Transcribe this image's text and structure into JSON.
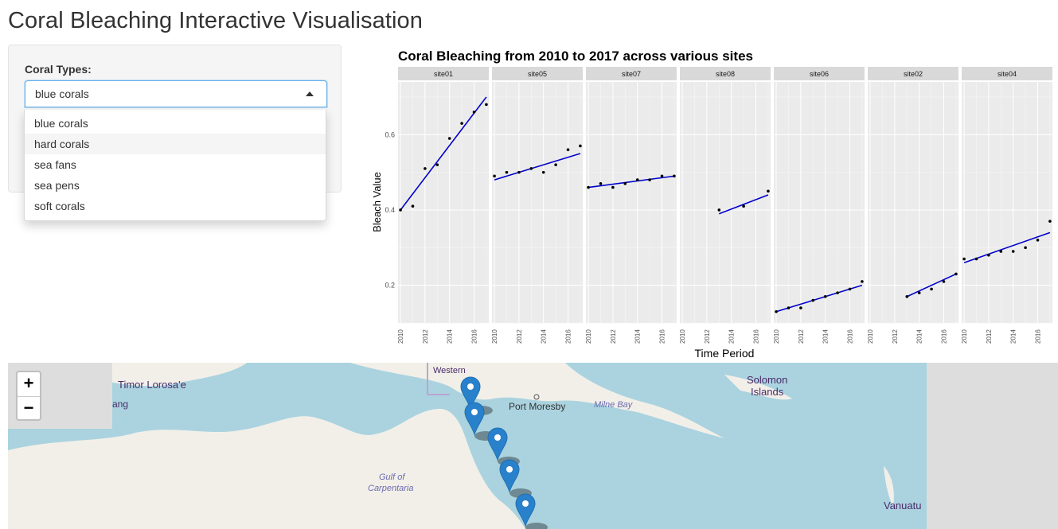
{
  "page": {
    "title": "Coral Bleaching Interactive Visualisation"
  },
  "sidebar": {
    "label": "Coral Types:",
    "selected": "blue corals",
    "options": [
      "blue corals",
      "hard corals",
      "sea fans",
      "sea pens",
      "soft corals"
    ],
    "highlighted_index": 1
  },
  "chart_data": {
    "type": "scatter",
    "title": "Coral Bleaching from 2010 to 2017 across various sites",
    "xlabel": "Time Period",
    "ylabel": "Bleach Value",
    "x_ticks": [
      "2010",
      "2012",
      "2014",
      "2016"
    ],
    "y_ticks": [
      "0.2",
      "0.4",
      "0.6"
    ],
    "xlim": [
      2009.8,
      2017.2
    ],
    "ylim": [
      0.1,
      0.74
    ],
    "grid": true,
    "trend_line": "linear",
    "panels": [
      {
        "site": "site01",
        "points": [
          [
            2010,
            0.4
          ],
          [
            2011,
            0.41
          ],
          [
            2012,
            0.51
          ],
          [
            2013,
            0.52
          ],
          [
            2014,
            0.59
          ],
          [
            2015,
            0.63
          ],
          [
            2016,
            0.66
          ],
          [
            2017,
            0.68
          ]
        ],
        "fit": [
          [
            2010,
            0.4
          ],
          [
            2017,
            0.7
          ]
        ]
      },
      {
        "site": "site05",
        "points": [
          [
            2010,
            0.49
          ],
          [
            2011,
            0.5
          ],
          [
            2012,
            0.5
          ],
          [
            2013,
            0.51
          ],
          [
            2014,
            0.5
          ],
          [
            2015,
            0.52
          ],
          [
            2016,
            0.56
          ],
          [
            2017,
            0.57
          ]
        ],
        "fit": [
          [
            2010,
            0.48
          ],
          [
            2017,
            0.55
          ]
        ]
      },
      {
        "site": "site07",
        "points": [
          [
            2010,
            0.46
          ],
          [
            2011,
            0.47
          ],
          [
            2012,
            0.46
          ],
          [
            2013,
            0.47
          ],
          [
            2014,
            0.48
          ],
          [
            2015,
            0.48
          ],
          [
            2016,
            0.49
          ],
          [
            2017,
            0.49
          ]
        ],
        "fit": [
          [
            2010,
            0.46
          ],
          [
            2017,
            0.49
          ]
        ]
      },
      {
        "site": "site08",
        "points": [
          [
            2013,
            0.4
          ],
          [
            2015,
            0.41
          ],
          [
            2017,
            0.45
          ]
        ],
        "fit": [
          [
            2013,
            0.39
          ],
          [
            2017,
            0.44
          ]
        ]
      },
      {
        "site": "site06",
        "points": [
          [
            2010,
            0.13
          ],
          [
            2011,
            0.14
          ],
          [
            2012,
            0.14
          ],
          [
            2013,
            0.16
          ],
          [
            2014,
            0.17
          ],
          [
            2015,
            0.18
          ],
          [
            2016,
            0.19
          ],
          [
            2017,
            0.21
          ]
        ],
        "fit": [
          [
            2010,
            0.13
          ],
          [
            2017,
            0.2
          ]
        ]
      },
      {
        "site": "site02",
        "points": [
          [
            2013,
            0.17
          ],
          [
            2014,
            0.18
          ],
          [
            2015,
            0.19
          ],
          [
            2016,
            0.21
          ],
          [
            2017,
            0.23
          ]
        ],
        "fit": [
          [
            2013,
            0.17
          ],
          [
            2017,
            0.23
          ]
        ]
      },
      {
        "site": "site04",
        "points": [
          [
            2010,
            0.27
          ],
          [
            2011,
            0.27
          ],
          [
            2012,
            0.28
          ],
          [
            2013,
            0.29
          ],
          [
            2014,
            0.29
          ],
          [
            2015,
            0.3
          ],
          [
            2016,
            0.32
          ],
          [
            2017,
            0.37
          ]
        ],
        "fit": [
          [
            2010,
            0.26
          ],
          [
            2017,
            0.34
          ]
        ]
      }
    ],
    "colors": {
      "panel_bg": "#ebebeb",
      "strip_bg": "#d9d9d9",
      "grid": "#ffffff",
      "line": "#0000cc",
      "point": "#000000"
    }
  },
  "map": {
    "zoom_in": "+",
    "zoom_out": "−",
    "labels": [
      "Timor Lorosa'e",
      "ang",
      "Western",
      "Port Moresby",
      "Milne Bay",
      "Solomon",
      "Islands",
      "Gulf of",
      "Carpentaria",
      "Vanuatu"
    ],
    "marker_count": 5,
    "colors": {
      "water": "#aad3df",
      "land": "#f2efe9",
      "marker": "#2a81cb",
      "border": "#b8a5d0"
    }
  }
}
